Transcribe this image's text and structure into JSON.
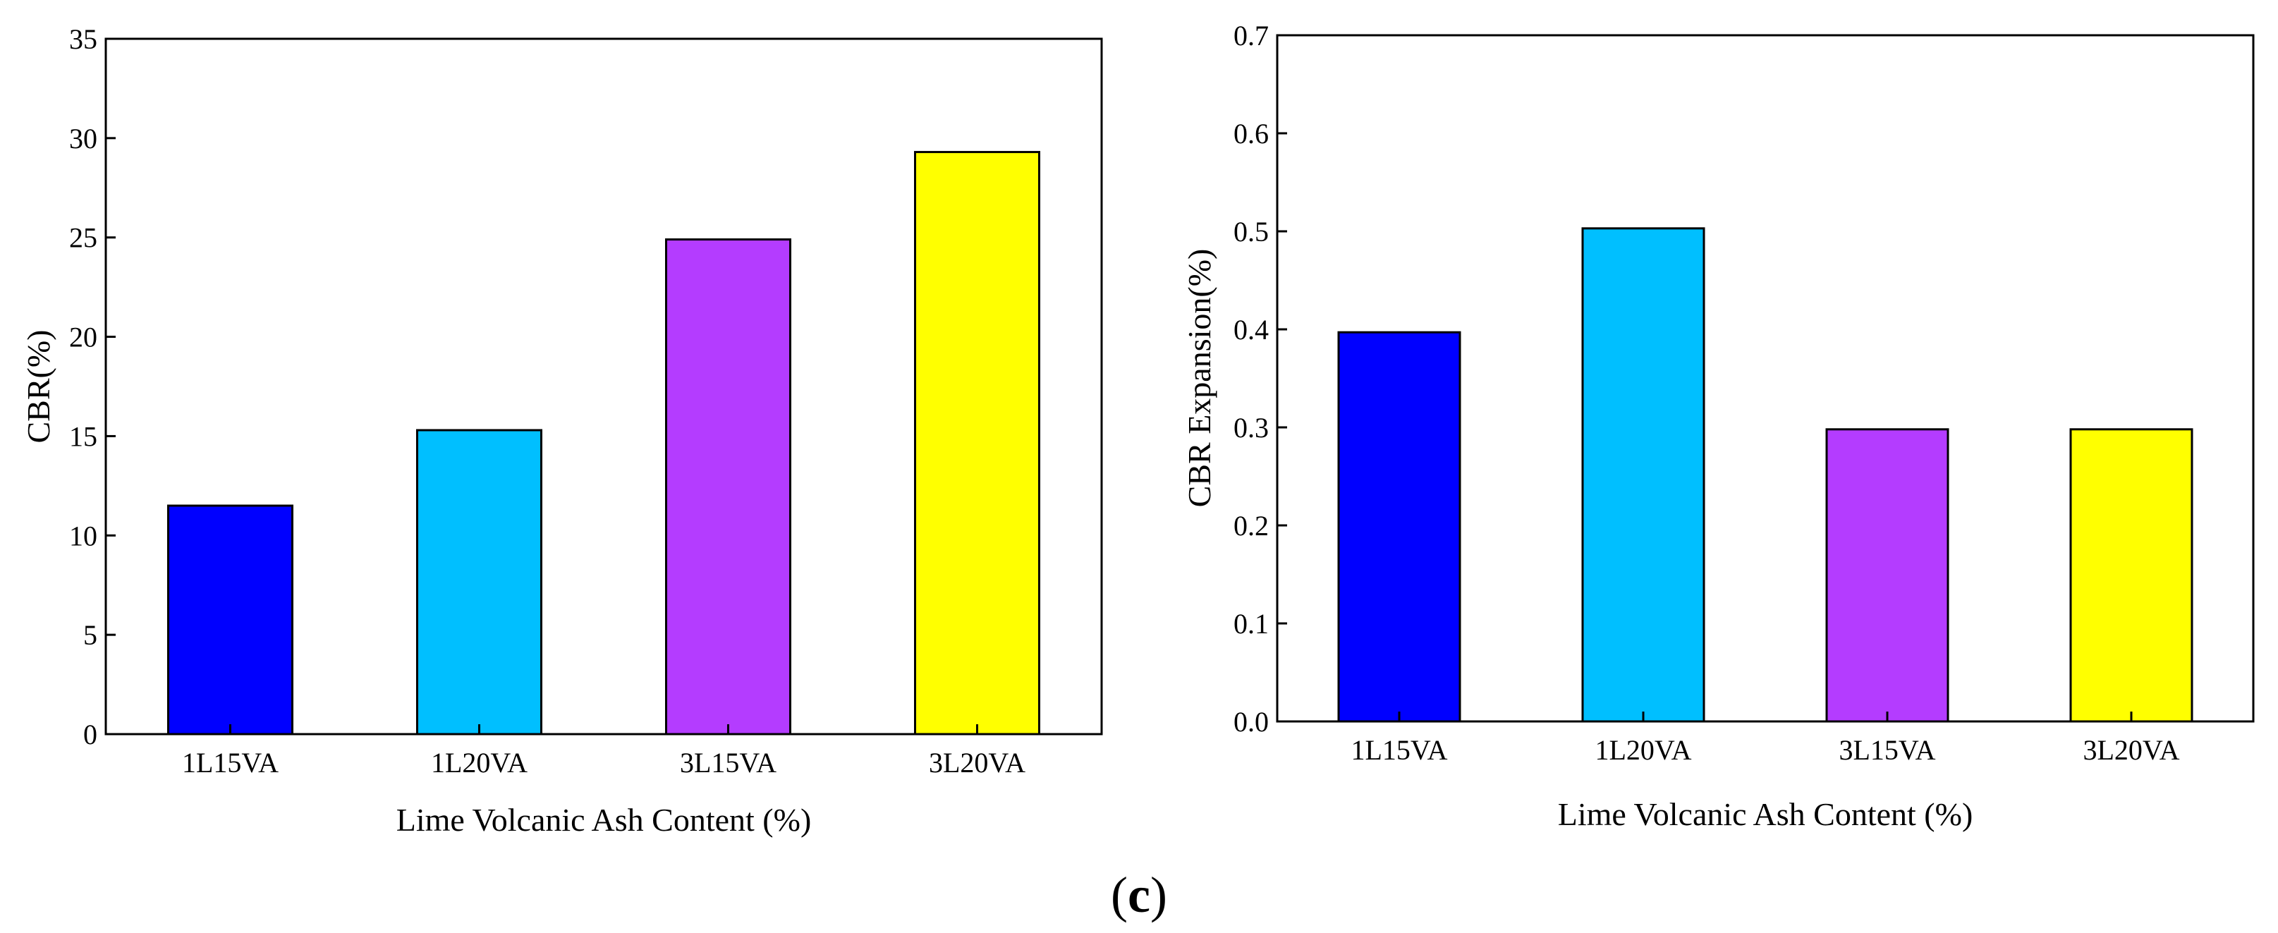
{
  "figure_label": {
    "open": "(",
    "letter": "c",
    "close": ")"
  },
  "chart_data": [
    {
      "type": "bar",
      "title": "",
      "categories": [
        "1L15VA",
        "1L20VA",
        "3L15VA",
        "3L20VA"
      ],
      "values": [
        11.5,
        15.3,
        24.9,
        29.3
      ],
      "colors": [
        "#0000ff",
        "#00bfff",
        "#b43cff",
        "#ffff00"
      ],
      "xlabel": "Lime Volcanic Ash Content (%)",
      "ylabel": "CBR(%)",
      "ylim": [
        0,
        35
      ],
      "yticks": [
        0,
        5,
        10,
        15,
        20,
        25,
        30,
        35
      ],
      "ytick_labels": [
        "0",
        "5",
        "10",
        "15",
        "20",
        "25",
        "30",
        "35"
      ],
      "grid": false
    },
    {
      "type": "bar",
      "title": "",
      "categories": [
        "1L15VA",
        "1L20VA",
        "3L15VA",
        "3L20VA"
      ],
      "values": [
        0.397,
        0.503,
        0.298,
        0.298
      ],
      "colors": [
        "#0000ff",
        "#00bfff",
        "#b43cff",
        "#ffff00"
      ],
      "xlabel": "Lime Volcanic Ash Content (%)",
      "ylabel": "CBR Expansion(%)",
      "ylim": [
        0,
        0.7
      ],
      "yticks": [
        0,
        0.1,
        0.2,
        0.3,
        0.4,
        0.5,
        0.6,
        0.7
      ],
      "ytick_labels": [
        "0.0",
        "0.1",
        "0.2",
        "0.3",
        "0.4",
        "0.5",
        "0.6",
        "0.7"
      ],
      "grid": false
    }
  ]
}
